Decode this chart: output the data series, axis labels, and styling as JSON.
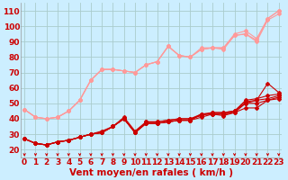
{
  "xlabel": "Vent moyen/en rafales ( km/h )",
  "background_color": "#cceeff",
  "grid_color": "#aacccc",
  "xlim": [
    -0.3,
    23.3
  ],
  "ylim": [
    15,
    115
  ],
  "yticks": [
    20,
    30,
    40,
    50,
    60,
    70,
    80,
    90,
    100,
    110
  ],
  "xticks": [
    0,
    1,
    2,
    3,
    4,
    5,
    6,
    7,
    8,
    9,
    10,
    11,
    12,
    13,
    14,
    15,
    16,
    17,
    18,
    19,
    20,
    21,
    22,
    23
  ],
  "lines_dark": [
    [
      27,
      24,
      23,
      25,
      26,
      28,
      30,
      31,
      35,
      41,
      32,
      38,
      38,
      39,
      40,
      40,
      42,
      44,
      44,
      45,
      51,
      52,
      63,
      57
    ],
    [
      27,
      24,
      23,
      25,
      26,
      28,
      30,
      31,
      35,
      40,
      31,
      38,
      38,
      39,
      40,
      40,
      43,
      44,
      44,
      45,
      52,
      53,
      55,
      56
    ],
    [
      27,
      24,
      23,
      25,
      26,
      28,
      30,
      31,
      35,
      40,
      31,
      37,
      37,
      38,
      39,
      39,
      43,
      43,
      43,
      45,
      50,
      52,
      53,
      55
    ],
    [
      27,
      24,
      23,
      25,
      26,
      28,
      30,
      31,
      35,
      40,
      31,
      37,
      37,
      38,
      39,
      39,
      43,
      43,
      43,
      44,
      50,
      50,
      52,
      54
    ],
    [
      27,
      24,
      23,
      25,
      26,
      28,
      30,
      32,
      35,
      40,
      31,
      37,
      37,
      38,
      39,
      39,
      41,
      43,
      42,
      44,
      47,
      47,
      52,
      53
    ]
  ],
  "lines_light": [
    [
      46,
      41,
      40,
      41,
      45,
      52,
      65,
      72,
      72,
      71,
      70,
      75,
      77,
      87,
      81,
      80,
      85,
      86,
      85,
      94,
      95,
      91,
      105,
      110
    ],
    [
      46,
      41,
      40,
      41,
      45,
      52,
      65,
      72,
      72,
      71,
      70,
      75,
      77,
      87,
      81,
      80,
      86,
      86,
      86,
      95,
      97,
      92,
      105,
      110
    ],
    [
      46,
      41,
      40,
      41,
      45,
      52,
      65,
      72,
      72,
      71,
      70,
      75,
      77,
      87,
      81,
      80,
      85,
      86,
      86,
      94,
      95,
      90,
      104,
      108
    ]
  ],
  "dark_color": "#cc0000",
  "light_color": "#ff9999",
  "marker": "D",
  "marker_size": 2.0,
  "linewidth": 0.8,
  "xlabel_fontsize": 7.5,
  "tick_fontsize": 6.5
}
